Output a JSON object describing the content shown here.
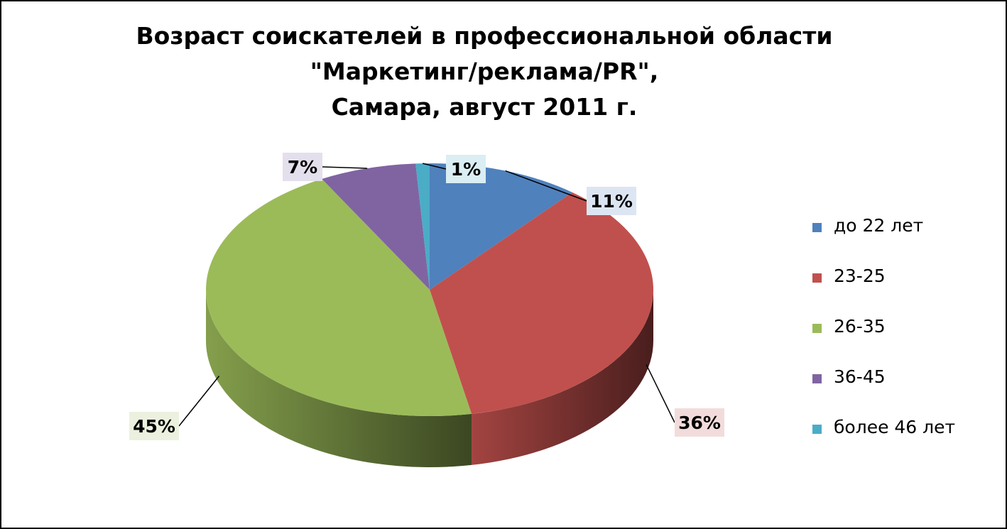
{
  "chart_data": {
    "type": "pie",
    "title": [
      "Возраст соискателей в профессиональной области",
      "\"Маркетинг/реклама/PR\",",
      "Самара, август 2011 г."
    ],
    "categories": [
      "до 22 лет",
      "23-25",
      "26-35",
      "36-45",
      "более 46 лет"
    ],
    "values": [
      11,
      36,
      45,
      7,
      1
    ],
    "data_labels": [
      "11%",
      "36%",
      "45%",
      "7%",
      "1%"
    ],
    "colors": [
      "#4F81BD",
      "#C0504D",
      "#9BBB59",
      "#8064A2",
      "#4BACC6"
    ],
    "label_backgrounds": [
      "#DCE6F2",
      "#F2DCDB",
      "#EBF1DE",
      "#E4DFEC",
      "#DAEEF3"
    ],
    "legend_position": "right",
    "style": "3d"
  }
}
